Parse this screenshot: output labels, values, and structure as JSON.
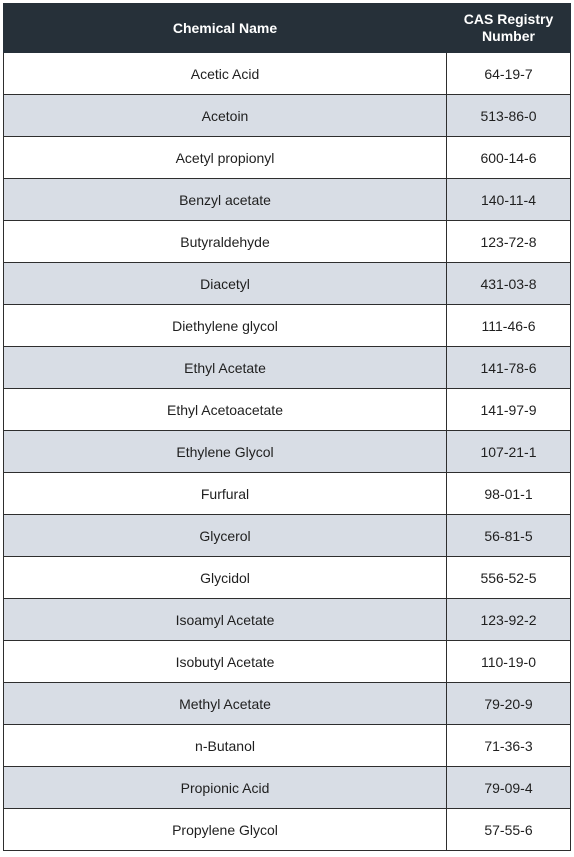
{
  "colors": {
    "header_bg": "#263039",
    "stripe_bg": "#d8dde5"
  },
  "table": {
    "headers": [
      "Chemical Name",
      "CAS Registry Number"
    ],
    "rows": [
      {
        "name": "Acetic Acid",
        "cas": "64-19-7"
      },
      {
        "name": "Acetoin",
        "cas": "513-86-0"
      },
      {
        "name": "Acetyl propionyl",
        "cas": "600-14-6"
      },
      {
        "name": "Benzyl acetate",
        "cas": "140-11-4"
      },
      {
        "name": "Butyraldehyde",
        "cas": "123-72-8"
      },
      {
        "name": "Diacetyl",
        "cas": "431-03-8"
      },
      {
        "name": "Diethylene glycol",
        "cas": "111-46-6"
      },
      {
        "name": "Ethyl Acetate",
        "cas": "141-78-6"
      },
      {
        "name": "Ethyl Acetoacetate",
        "cas": "141-97-9"
      },
      {
        "name": "Ethylene Glycol",
        "cas": "107-21-1"
      },
      {
        "name": "Furfural",
        "cas": "98-01-1"
      },
      {
        "name": "Glycerol",
        "cas": "56-81-5"
      },
      {
        "name": "Glycidol",
        "cas": "556-52-5"
      },
      {
        "name": "Isoamyl Acetate",
        "cas": "123-92-2"
      },
      {
        "name": "Isobutyl Acetate",
        "cas": "110-19-0"
      },
      {
        "name": "Methyl Acetate",
        "cas": "79-20-9"
      },
      {
        "name": "n-Butanol",
        "cas": "71-36-3"
      },
      {
        "name": "Propionic Acid",
        "cas": "79-09-4"
      },
      {
        "name": "Propylene Glycol",
        "cas": "57-55-6"
      }
    ]
  }
}
